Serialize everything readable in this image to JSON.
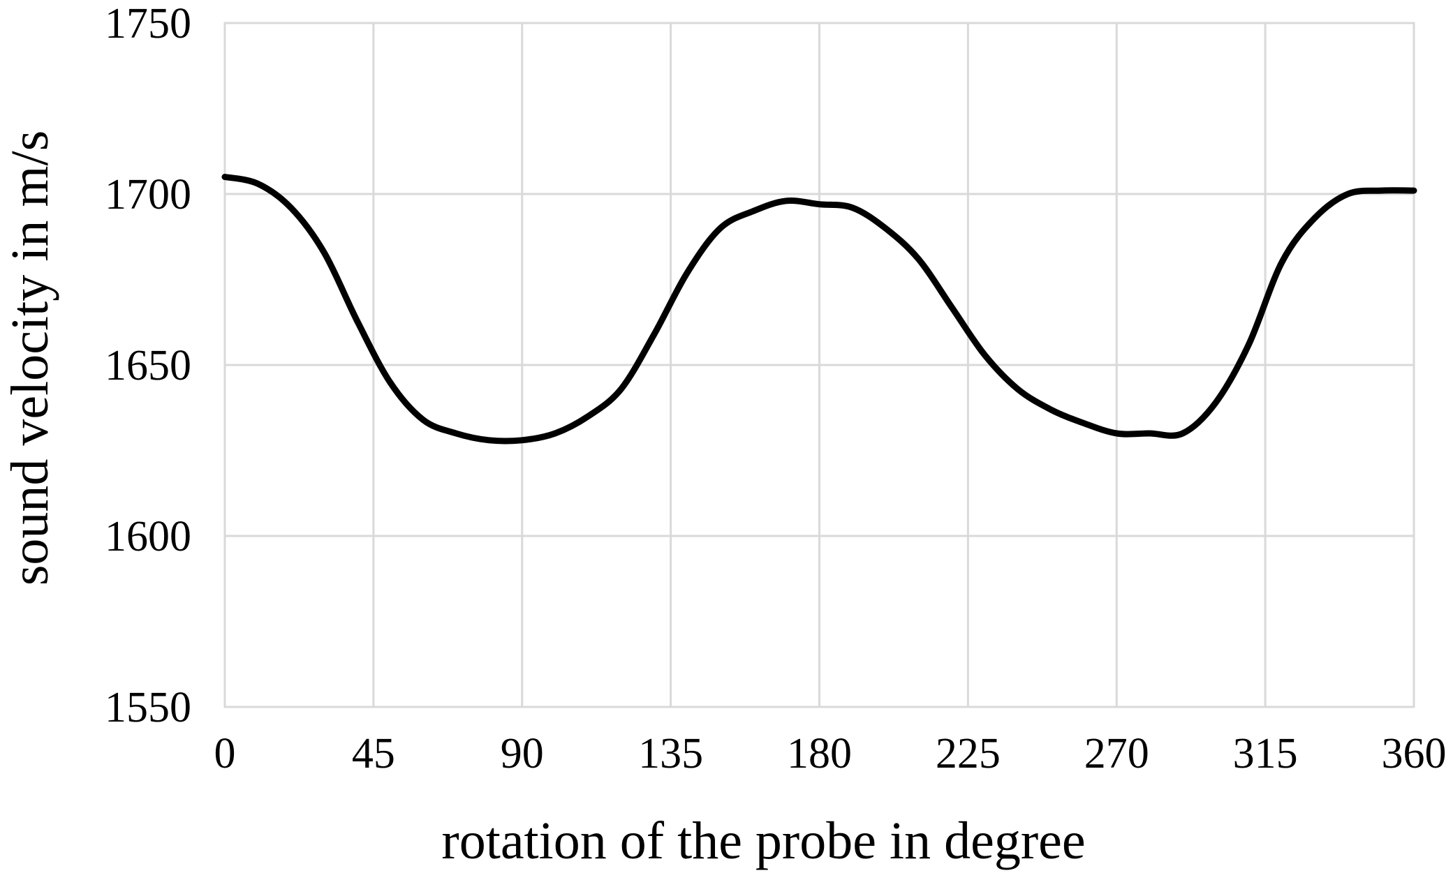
{
  "chart_data": {
    "type": "line",
    "title": "",
    "xlabel": "rotation of the probe in degree",
    "ylabel": "sound velocity in m/s",
    "xlim": [
      0,
      360
    ],
    "ylim": [
      1550,
      1750
    ],
    "x_ticks": [
      0,
      45,
      90,
      135,
      180,
      225,
      270,
      315,
      360
    ],
    "y_ticks": [
      1550,
      1600,
      1650,
      1700,
      1750
    ],
    "grid": true,
    "legend": "none",
    "series": [
      {
        "color": "#000000",
        "smooth": true,
        "x": [
          0,
          10,
          20,
          30,
          40,
          50,
          60,
          70,
          80,
          90,
          100,
          110,
          120,
          130,
          140,
          150,
          160,
          170,
          180,
          190,
          200,
          210,
          220,
          230,
          240,
          250,
          260,
          270,
          280,
          290,
          300,
          310,
          320,
          330,
          340,
          350,
          360
        ],
        "y": [
          1705,
          1703,
          1696,
          1683,
          1663,
          1645,
          1634,
          1630,
          1628,
          1628,
          1630,
          1635,
          1643,
          1659,
          1677,
          1690,
          1695,
          1698,
          1697,
          1696,
          1690,
          1681,
          1667,
          1653,
          1643,
          1637,
          1633,
          1630,
          1630,
          1630,
          1639,
          1656,
          1680,
          1693,
          1700,
          1701,
          1701
        ]
      }
    ]
  }
}
